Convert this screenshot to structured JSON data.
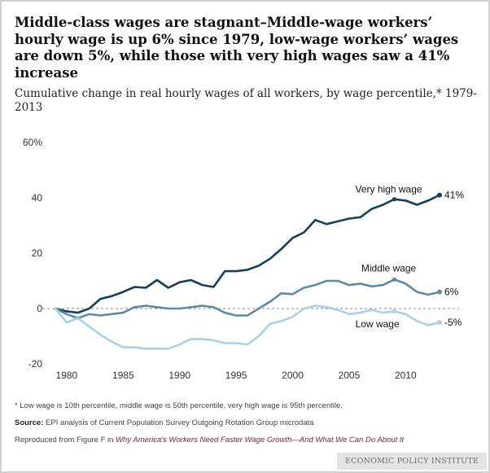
{
  "title": "Middle-class wages are stagnant–Middle-wage workers’ hourly wage is up 6% since 1979, low-wage workers’ wages are down 5%, while those with very high wages saw a 41% increase",
  "subtitle": "Cumulative change in real hourly wages of all workers, by wage percentile,* 1979-2013",
  "footnote": "* Low wage is 10th percentile, middle wage is 50th percentile, very high wage is 95th percentile.",
  "source_label": "Source:",
  "source_text": "EPI analysis of Current Population Survey Outgoing Rotation Group microdata",
  "repro_prefix": "Reproduced from Figure F in",
  "repro_title": "Why America’s Workers Need Faster Wage Growth—And What We Can Do About It",
  "brand": "ECONOMIC POLICY INSTITUTE",
  "colors": {
    "very_high": "#173e5a",
    "middle": "#5f8aa6",
    "low": "#a9d0e8",
    "zero_line": "#888888"
  },
  "chart_data": {
    "type": "line",
    "xlim": [
      1979,
      2013
    ],
    "ylim": [
      -20,
      60
    ],
    "x_ticks": [
      1980,
      1985,
      1990,
      1995,
      2000,
      2005,
      2010
    ],
    "y_ticks": [
      {
        "value": 60,
        "label": "60%"
      },
      {
        "value": 40,
        "label": "40"
      },
      {
        "value": 20,
        "label": "20"
      },
      {
        "value": 0,
        "label": "0"
      },
      {
        "value": -20,
        "label": "-20"
      }
    ],
    "grid": false,
    "x": [
      1979,
      1980,
      1981,
      1982,
      1983,
      1984,
      1985,
      1986,
      1987,
      1988,
      1989,
      1990,
      1991,
      1992,
      1993,
      1994,
      1995,
      1996,
      1997,
      1998,
      1999,
      2000,
      2001,
      2002,
      2003,
      2004,
      2005,
      2006,
      2007,
      2008,
      2009,
      2010,
      2011,
      2012,
      2013
    ],
    "series": [
      {
        "name": "Very high wage",
        "end_label": "41%",
        "color_key": "very_high",
        "values": [
          0,
          -1,
          -1.5,
          0,
          3.5,
          4.5,
          6,
          7.8,
          7.5,
          10.3,
          7.5,
          9.5,
          10.3,
          8.5,
          7.8,
          13.5,
          13.5,
          14,
          15.5,
          18,
          21.5,
          25.5,
          27.5,
          32,
          30.5,
          31.5,
          32.5,
          33,
          36,
          37.5,
          39.5,
          39,
          37.5,
          39,
          41
        ]
      },
      {
        "name": "Middle wage",
        "end_label": "6%",
        "color_key": "middle",
        "values": [
          0,
          -2,
          -3.5,
          -2,
          -2.5,
          -2,
          -1.5,
          0.5,
          1,
          0.5,
          0,
          0,
          0.5,
          1,
          0.5,
          -1.5,
          -2.5,
          -2.5,
          0,
          2.5,
          5.5,
          5.2,
          7.5,
          8.5,
          10,
          10,
          8.5,
          9,
          8,
          8.5,
          10.5,
          9,
          6,
          5,
          6
        ]
      },
      {
        "name": "Low wage",
        "end_label": "-5%",
        "color_key": "low",
        "values": [
          0,
          -5,
          -3.5,
          -6.5,
          -9.5,
          -12,
          -14,
          -14,
          -14.5,
          -14.5,
          -14.5,
          -13,
          -11,
          -11,
          -11.5,
          -12.5,
          -12.5,
          -13,
          -10,
          -5.5,
          -4.5,
          -3,
          0,
          1,
          0.5,
          -0.5,
          -2,
          -1.5,
          -0.5,
          -1.5,
          -1,
          -2,
          -4.5,
          -6,
          -5
        ]
      }
    ]
  }
}
